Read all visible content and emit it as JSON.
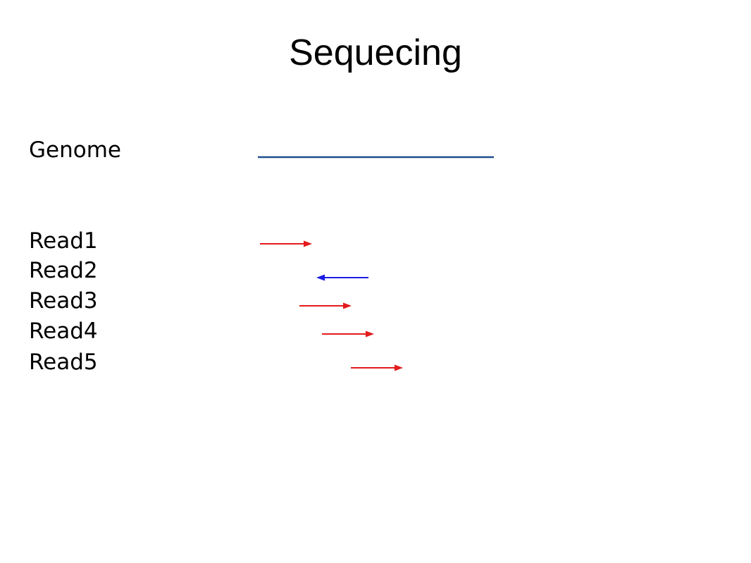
{
  "slide": {
    "title": "Sequecing"
  },
  "genome": {
    "label": "Genome",
    "color": "#1F4E8C"
  },
  "reads": [
    {
      "label": "Read1",
      "direction": "forward",
      "color": "#E41A1C"
    },
    {
      "label": "Read2",
      "direction": "reverse",
      "color": "#1C1CE4"
    },
    {
      "label": "Read3",
      "direction": "forward",
      "color": "#E41A1C"
    },
    {
      "label": "Read4",
      "direction": "forward",
      "color": "#E41A1C"
    },
    {
      "label": "Read5",
      "direction": "forward",
      "color": "#E41A1C"
    }
  ]
}
